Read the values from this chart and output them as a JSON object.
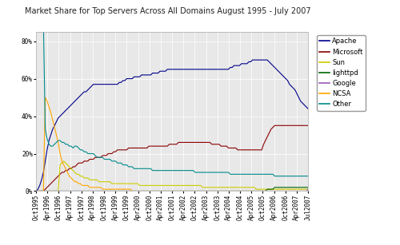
{
  "title": "Market Share for Top Servers Across All Domains August 1995 - July 2007",
  "background_color": "#ffffff",
  "plot_bg_color": "#e8e8e8",
  "grid_color": "#ffffff",
  "series": {
    "Apache": {
      "color": "#00008B",
      "data": [
        0,
        1,
        3,
        6,
        10,
        16,
        22,
        27,
        30,
        33,
        35,
        37,
        39,
        40,
        41,
        42,
        43,
        44,
        45,
        46,
        47,
        48,
        49,
        50,
        51,
        52,
        53,
        53,
        54,
        55,
        56,
        57,
        57,
        57,
        57,
        57,
        57,
        57,
        57,
        57,
        57,
        57,
        57,
        57,
        57,
        58,
        58,
        59,
        59,
        60,
        60,
        60,
        60,
        61,
        61,
        61,
        61,
        62,
        62,
        62,
        62,
        62,
        62,
        63,
        63,
        63,
        63,
        64,
        64,
        64,
        64,
        65,
        65,
        65,
        65,
        65,
        65,
        65,
        65,
        65,
        65,
        65,
        65,
        65,
        65,
        65,
        65,
        65,
        65,
        65,
        65,
        65,
        65,
        65,
        65,
        65,
        65,
        65,
        65,
        65,
        65,
        65,
        65,
        65,
        65,
        66,
        66,
        67,
        67,
        67,
        67,
        68,
        68,
        68,
        68,
        69,
        69,
        70,
        70,
        70,
        70,
        70,
        70,
        70,
        70,
        70,
        69,
        68,
        67,
        66,
        65,
        64,
        63,
        62,
        61,
        60,
        59,
        57,
        56,
        55,
        54,
        52,
        50,
        48,
        47,
        46,
        45,
        44
      ]
    },
    "Microsoft": {
      "color": "#8B0000",
      "data": [
        0,
        0,
        0,
        0,
        0,
        1,
        2,
        3,
        4,
        5,
        6,
        7,
        8,
        9,
        10,
        10,
        11,
        11,
        12,
        12,
        13,
        13,
        14,
        15,
        15,
        15,
        16,
        16,
        16,
        17,
        17,
        17,
        18,
        18,
        18,
        18,
        19,
        19,
        19,
        20,
        20,
        20,
        21,
        21,
        22,
        22,
        22,
        22,
        22,
        22,
        23,
        23,
        23,
        23,
        23,
        23,
        23,
        23,
        23,
        23,
        23,
        24,
        24,
        24,
        24,
        24,
        24,
        24,
        24,
        24,
        24,
        24,
        25,
        25,
        25,
        25,
        25,
        26,
        26,
        26,
        26,
        26,
        26,
        26,
        26,
        26,
        26,
        26,
        26,
        26,
        26,
        26,
        26,
        26,
        26,
        25,
        25,
        25,
        25,
        25,
        24,
        24,
        24,
        24,
        23,
        23,
        23,
        23,
        23,
        22,
        22,
        22,
        22,
        22,
        22,
        22,
        22,
        22,
        22,
        22,
        22,
        22,
        22,
        25,
        27,
        29,
        31,
        33,
        34,
        35,
        35,
        35,
        35,
        35,
        35,
        35,
        35,
        35,
        35,
        35,
        35,
        35,
        35,
        35,
        35,
        35,
        35,
        35
      ]
    },
    "Sun": {
      "color": "#cccc00",
      "data": [
        0,
        0,
        0,
        0,
        0,
        0,
        0,
        0,
        0,
        0,
        0,
        0,
        0,
        14,
        15,
        16,
        15,
        14,
        13,
        12,
        11,
        10,
        9,
        9,
        8,
        8,
        7,
        7,
        7,
        6,
        6,
        6,
        6,
        6,
        5,
        5,
        5,
        5,
        5,
        5,
        5,
        4,
        4,
        4,
        4,
        4,
        4,
        4,
        4,
        4,
        4,
        4,
        4,
        4,
        4,
        4,
        3,
        3,
        3,
        3,
        3,
        3,
        3,
        3,
        3,
        3,
        3,
        3,
        3,
        3,
        3,
        3,
        3,
        3,
        3,
        3,
        3,
        3,
        3,
        3,
        3,
        3,
        3,
        3,
        3,
        3,
        3,
        3,
        3,
        3,
        2,
        2,
        2,
        2,
        2,
        2,
        2,
        2,
        2,
        2,
        2,
        2,
        2,
        2,
        2,
        2,
        2,
        2,
        2,
        2,
        2,
        2,
        2,
        2,
        2,
        2,
        2,
        2,
        2,
        1,
        1,
        1,
        1,
        1,
        1,
        1,
        1,
        1,
        1,
        1,
        1,
        1,
        1,
        1,
        1,
        1,
        1,
        1,
        1,
        1,
        1,
        1,
        1,
        1,
        1,
        1,
        1,
        1
      ]
    },
    "lighttpd": {
      "color": "#006400",
      "data": [
        0,
        0,
        0,
        0,
        0,
        0,
        0,
        0,
        0,
        0,
        0,
        0,
        0,
        0,
        0,
        0,
        0,
        0,
        0,
        0,
        0,
        0,
        0,
        0,
        0,
        0,
        0,
        0,
        0,
        0,
        0,
        0,
        0,
        0,
        0,
        0,
        0,
        0,
        0,
        0,
        0,
        0,
        0,
        0,
        0,
        0,
        0,
        0,
        0,
        0,
        0,
        0,
        0,
        0,
        0,
        0,
        0,
        0,
        0,
        0,
        0,
        0,
        0,
        0,
        0,
        0,
        0,
        0,
        0,
        0,
        0,
        0,
        0,
        0,
        0,
        0,
        0,
        0,
        0,
        0,
        0,
        0,
        0,
        0,
        0,
        0,
        0,
        0,
        0,
        0,
        0,
        0,
        0,
        0,
        0,
        0,
        0,
        0,
        0,
        0,
        0,
        0,
        0,
        0,
        0,
        0,
        0,
        0,
        0,
        0,
        0,
        0,
        0,
        0,
        0,
        0,
        0,
        0,
        0,
        0,
        0,
        0,
        0,
        0,
        0,
        1,
        1,
        1,
        1,
        2,
        2,
        2,
        2,
        2,
        2,
        2,
        2,
        2,
        2,
        2,
        2,
        2,
        2,
        2,
        2,
        2,
        2,
        2
      ]
    },
    "Google": {
      "color": "#9B59B6",
      "data": [
        0,
        0,
        0,
        0,
        0,
        0,
        0,
        0,
        0,
        0,
        0,
        0,
        0,
        0,
        0,
        0,
        0,
        0,
        0,
        0,
        0,
        0,
        0,
        0,
        0,
        0,
        0,
        0,
        0,
        0,
        0,
        0,
        0,
        0,
        0,
        0,
        0,
        0,
        0,
        0,
        0,
        0,
        0,
        0,
        0,
        0,
        0,
        0,
        0,
        0,
        0,
        0,
        0,
        0,
        0,
        0,
        0,
        0,
        0,
        0,
        0,
        0,
        0,
        0,
        0,
        0,
        0,
        0,
        0,
        0,
        0,
        0,
        0,
        0,
        0,
        0,
        0,
        0,
        0,
        0,
        0,
        0,
        0,
        0,
        0,
        0,
        0,
        0,
        0,
        0,
        0,
        0,
        0,
        0,
        0,
        0,
        0,
        0,
        0,
        0,
        0,
        0,
        0,
        0,
        0,
        0,
        0,
        0,
        0,
        0,
        0,
        0,
        0,
        0,
        0,
        0,
        0,
        0,
        0,
        0,
        0,
        0,
        0,
        0,
        0,
        0,
        0,
        0,
        0,
        0,
        0,
        0,
        0,
        0,
        0,
        0,
        0,
        0,
        0,
        0,
        0,
        0,
        0,
        0,
        0,
        0,
        0,
        1
      ]
    },
    "NCSA": {
      "color": "#FFA500",
      "data": [
        0,
        0,
        0,
        0,
        0,
        50,
        48,
        45,
        42,
        38,
        34,
        30,
        26,
        20,
        16,
        14,
        12,
        10,
        8,
        7,
        6,
        5,
        5,
        4,
        4,
        3,
        3,
        3,
        3,
        2,
        2,
        2,
        2,
        2,
        2,
        2,
        1,
        1,
        1,
        1,
        1,
        1,
        1,
        1,
        1,
        1,
        1,
        1,
        1,
        1,
        1,
        1,
        0,
        0,
        0,
        0,
        0,
        0,
        0,
        0,
        0,
        0,
        0,
        0,
        0,
        0,
        0,
        0,
        0,
        0,
        0,
        0,
        0,
        0,
        0,
        0,
        0,
        0,
        0,
        0,
        0,
        0,
        0,
        0,
        0,
        0,
        0,
        0,
        0,
        0,
        0,
        0,
        0,
        0,
        0,
        0,
        0,
        0,
        0,
        0,
        0,
        0,
        0,
        0,
        0,
        0,
        0,
        0,
        0,
        0,
        0,
        0,
        0,
        0,
        0,
        0,
        0,
        0,
        0,
        0,
        0,
        0,
        0,
        0,
        0,
        0,
        0,
        0,
        0,
        0,
        0,
        0,
        0,
        0,
        0,
        0,
        0,
        0,
        0,
        0,
        0,
        0,
        0,
        0,
        0,
        0,
        0,
        0
      ]
    },
    "Other": {
      "color": "#008B8B",
      "data": [
        100,
        99,
        97,
        94,
        90,
        33,
        28,
        25,
        24,
        24,
        25,
        26,
        27,
        27,
        26,
        26,
        25,
        25,
        24,
        24,
        23,
        24,
        24,
        23,
        22,
        22,
        21,
        21,
        20,
        20,
        20,
        20,
        19,
        18,
        18,
        18,
        18,
        17,
        17,
        17,
        17,
        16,
        16,
        16,
        15,
        15,
        15,
        14,
        14,
        14,
        13,
        13,
        13,
        12,
        12,
        12,
        12,
        12,
        12,
        12,
        12,
        12,
        12,
        11,
        11,
        11,
        11,
        11,
        11,
        11,
        11,
        11,
        11,
        11,
        11,
        11,
        11,
        11,
        11,
        11,
        11,
        11,
        11,
        11,
        11,
        11,
        10,
        10,
        10,
        10,
        10,
        10,
        10,
        10,
        10,
        10,
        10,
        10,
        10,
        10,
        10,
        10,
        10,
        10,
        10,
        9,
        9,
        9,
        9,
        9,
        9,
        9,
        9,
        9,
        9,
        9,
        9,
        9,
        9,
        9,
        9,
        9,
        9,
        9,
        9,
        9,
        9,
        9,
        9,
        8,
        8,
        8,
        8,
        8,
        8,
        8,
        8,
        8,
        8,
        8,
        8,
        8,
        8,
        8,
        8,
        8,
        8,
        8
      ]
    }
  },
  "x_tick_labels": [
    "Oct1995",
    "Apr1996",
    "Oct1996",
    "Apr1997",
    "Oct1997",
    "Apr1998",
    "Oct1998",
    "Apr1999",
    "Oct1999",
    "Apr2000",
    "Oct2000",
    "Apr2001",
    "Oct2001",
    "Apr2002",
    "Oct2002",
    "Apr2003",
    "Oct2003",
    "Apr2004",
    "Oct2004",
    "Apr2005",
    "Oct2005",
    "Apr2006",
    "Oct2006",
    "Apr2007",
    "Jul2007"
  ],
  "y_ticks": [
    0,
    20,
    40,
    60,
    80
  ],
  "y_tick_labels": [
    "0%",
    "20%",
    "40%",
    "60%",
    "80%"
  ],
  "ylim": [
    0,
    85
  ],
  "legend_order": [
    "Apache",
    "Microsoft",
    "Sun",
    "lighttpd",
    "Google",
    "NCSA",
    "Other"
  ]
}
